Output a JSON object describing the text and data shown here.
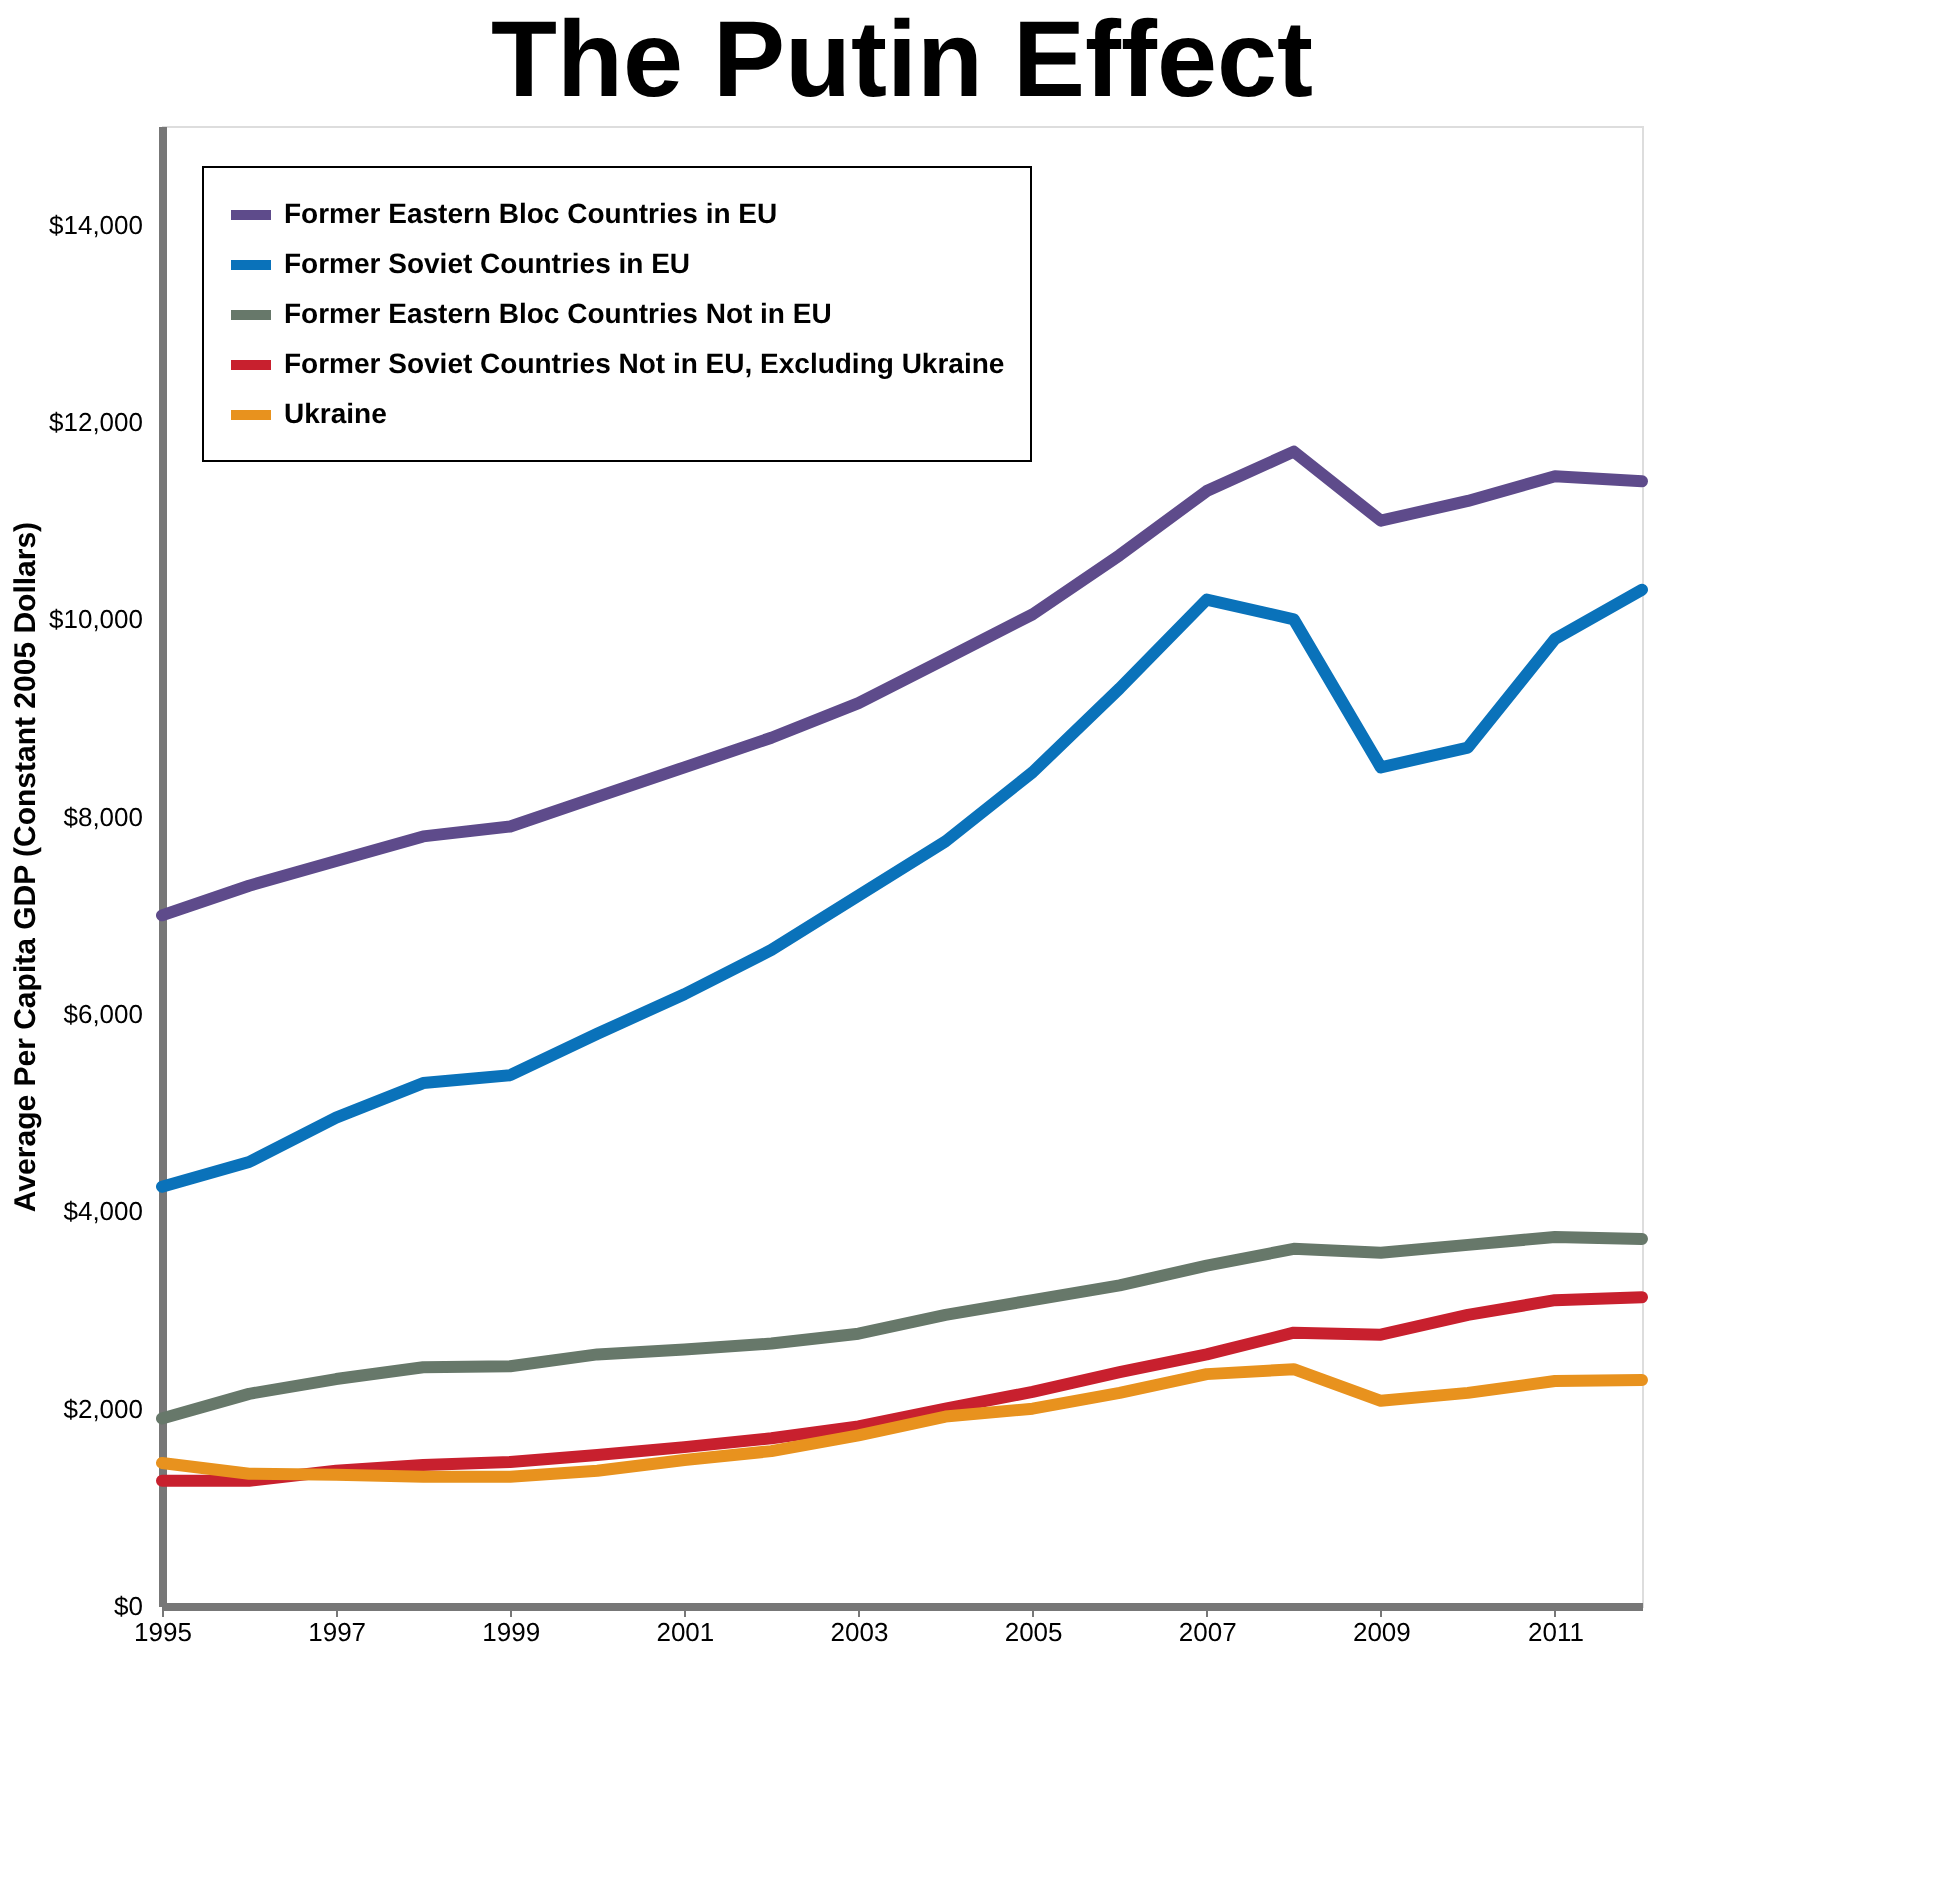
{
  "chart_data": {
    "type": "line",
    "title": "The Putin Effect",
    "ylabel": "Average Per Capita GDP (Constant 2005 Dollars)",
    "x": [
      1995,
      1996,
      1997,
      1998,
      1999,
      2000,
      2001,
      2002,
      2003,
      2004,
      2005,
      2006,
      2007,
      2008,
      2009,
      2010,
      2011,
      2012
    ],
    "series": [
      {
        "name": "Former Eastern Bloc Countries in EU",
        "color": "#5e4b8b",
        "values": [
          7000,
          7300,
          7550,
          7800,
          7900,
          8200,
          8500,
          8800,
          9150,
          9600,
          10050,
          10650,
          11300,
          11700,
          11000,
          11200,
          11450,
          11400
        ]
      },
      {
        "name": "Former Soviet Countries in EU",
        "color": "#0a72ba",
        "values": [
          4250,
          4500,
          4950,
          5300,
          5380,
          5800,
          6200,
          6650,
          7200,
          7750,
          8450,
          9300,
          10200,
          10000,
          8500,
          8700,
          9800,
          10300
        ]
      },
      {
        "name": "Former Eastern Bloc Countries Not in EU",
        "color": "#67786a",
        "values": [
          1900,
          2150,
          2300,
          2420,
          2430,
          2550,
          2600,
          2660,
          2760,
          2950,
          3100,
          3250,
          3450,
          3620,
          3580,
          3660,
          3740,
          3720
        ]
      },
      {
        "name": "Former Soviet Countries Not in EU, Excluding Ukraine",
        "color": "#c8202e",
        "values": [
          1270,
          1270,
          1370,
          1430,
          1460,
          1530,
          1610,
          1700,
          1820,
          2000,
          2170,
          2370,
          2550,
          2770,
          2750,
          2950,
          3100,
          3130
        ]
      },
      {
        "name": "Ukraine",
        "color": "#e8921e",
        "values": [
          1450,
          1340,
          1330,
          1310,
          1310,
          1370,
          1480,
          1570,
          1730,
          1920,
          2000,
          2160,
          2350,
          2400,
          2080,
          2160,
          2280,
          2290
        ]
      }
    ],
    "xlim": [
      1995,
      2012
    ],
    "xticks": [
      1995,
      1997,
      1999,
      2001,
      2003,
      2005,
      2007,
      2009,
      2011
    ],
    "ylim": [
      0,
      15000
    ],
    "yticks": [
      {
        "value": 0,
        "label": "$0"
      },
      {
        "value": 2000,
        "label": "$2,000"
      },
      {
        "value": 4000,
        "label": "$4,000"
      },
      {
        "value": 6000,
        "label": "$6,000"
      },
      {
        "value": 8000,
        "label": "$8,000"
      },
      {
        "value": 10000,
        "label": "$10,000"
      },
      {
        "value": 12000,
        "label": "$12,000"
      },
      {
        "value": 14000,
        "label": "$14,000"
      }
    ],
    "grid": false,
    "legend": "top left",
    "marker": "none",
    "line_style": "solid"
  }
}
